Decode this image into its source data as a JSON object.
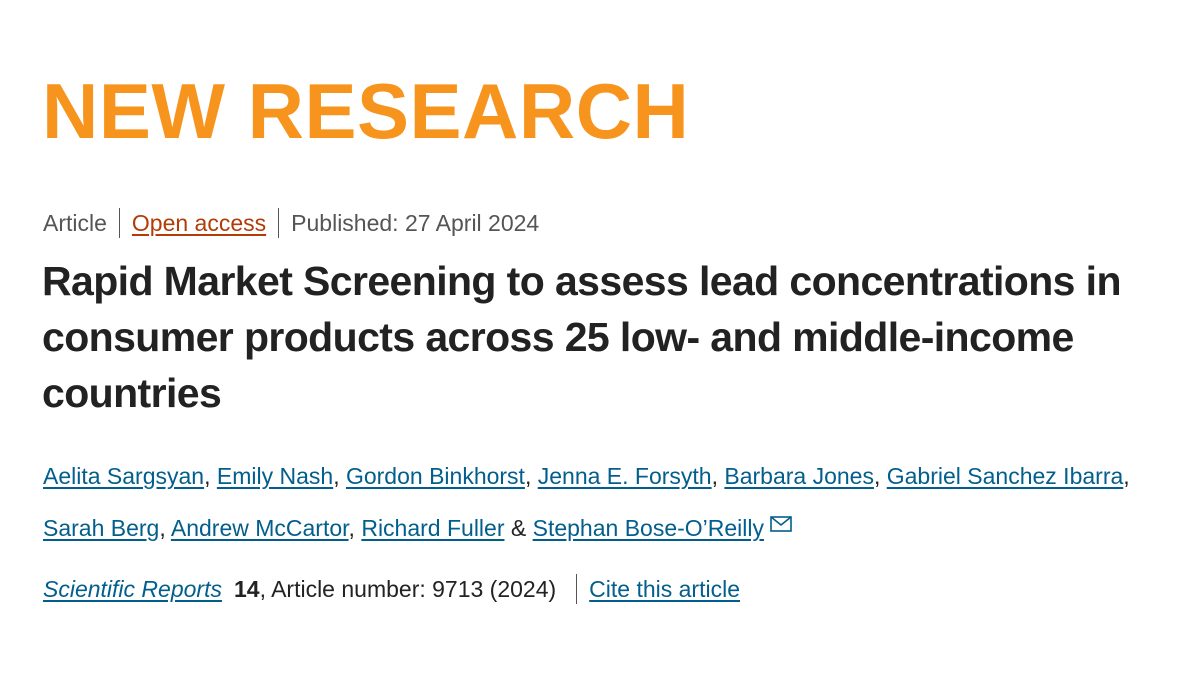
{
  "banner": {
    "text": "NEW RESEARCH",
    "color": "#f7941d"
  },
  "meta": {
    "type": "Article",
    "access": "Open access",
    "published": "Published: 27 April 2024"
  },
  "title": "Rapid Market Screening to assess lead concentrations in consumer products across 25 low- and middle-income countries",
  "authors": [
    "Aelita Sargsyan",
    "Emily Nash",
    "Gordon Binkhorst",
    "Jenna E. Forsyth",
    "Barbara Jones",
    "Gabriel Sanchez Ibarra",
    "Sarah Berg",
    "Andrew McCartor",
    "Richard Fuller",
    "Stephan Bose-O’Reilly"
  ],
  "author_separator": ", ",
  "author_last_separator": " & ",
  "corresponding_icon": "mail-icon",
  "citation": {
    "journal": "Scientific Reports",
    "volume": "14",
    "article_number": ", Article number: 9713 (2024)",
    "cite_link": "Cite this article"
  },
  "colors": {
    "link": "#025e8d",
    "open_access": "#b33c06",
    "text": "#222222"
  }
}
